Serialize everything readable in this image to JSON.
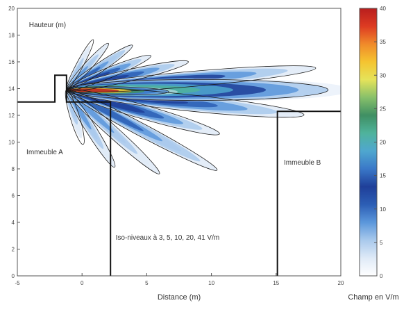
{
  "chart_data": {
    "type": "heatmap",
    "xlabel": "Distance (m)",
    "ylabel": "",
    "xlim": [
      -5,
      20
    ],
    "ylim": [
      0,
      20
    ],
    "x_ticks": [
      -5,
      0,
      5,
      10,
      15,
      20
    ],
    "y_ticks": [
      0,
      2,
      4,
      6,
      8,
      10,
      12,
      14,
      16,
      18,
      20
    ],
    "colorbar": {
      "label": "Champ en V/m",
      "range": [
        0,
        40
      ],
      "ticks": [
        0,
        5,
        10,
        15,
        20,
        25,
        30,
        35,
        40
      ]
    },
    "annotations": [
      {
        "text": "Hauteur (m)",
        "x": -4.1,
        "y": 18.6
      },
      {
        "text": "Immeuble A",
        "x": -4.3,
        "y": 9.1
      },
      {
        "text": "Immeuble B",
        "x": 15.6,
        "y": 8.3
      },
      {
        "text": "Iso-niveaux à 3, 5, 10, 20, 41 V/m",
        "x": 2.6,
        "y": 2.7
      }
    ],
    "iso_levels": [
      3,
      5,
      10,
      20,
      41
    ],
    "antenna": {
      "x": -1.2,
      "y": 13.9
    },
    "building_a_outline": [
      [
        -5,
        13
      ],
      [
        -2.1,
        13
      ],
      [
        -2.1,
        15
      ],
      [
        -1.2,
        15
      ],
      [
        -1.2,
        13
      ],
      [
        2.2,
        13
      ],
      [
        2.2,
        0
      ]
    ],
    "building_b_outline": [
      [
        15.1,
        0
      ],
      [
        15.1,
        12.3
      ],
      [
        20,
        12.3
      ]
    ],
    "lobes": [
      {
        "angle_deg": 0,
        "length": 23,
        "width": 1.8,
        "peak": 22
      },
      {
        "angle_deg": -1,
        "length": 9,
        "width": 0.7,
        "peak": 40
      },
      {
        "angle_deg": 5,
        "length": 22,
        "width": 1.3,
        "peak": 15
      },
      {
        "angle_deg": -6,
        "length": 21,
        "width": 1.4,
        "peak": 14
      },
      {
        "angle_deg": 13,
        "length": 11,
        "width": 1.0,
        "peak": 14
      },
      {
        "angle_deg": -16,
        "length": 14,
        "width": 1.2,
        "peak": 12
      },
      {
        "angle_deg": 22,
        "length": 8,
        "width": 0.9,
        "peak": 12
      },
      {
        "angle_deg": -28,
        "length": 15,
        "width": 1.1,
        "peak": 10
      },
      {
        "angle_deg": 34,
        "length": 7,
        "width": 0.8,
        "peak": 10
      },
      {
        "angle_deg": -42,
        "length": 11,
        "width": 1.0,
        "peak": 8
      },
      {
        "angle_deg": 48,
        "length": 5.5,
        "width": 0.7,
        "peak": 8
      },
      {
        "angle_deg": -58,
        "length": 8,
        "width": 0.9,
        "peak": 7
      },
      {
        "angle_deg": 62,
        "length": 5,
        "width": 0.6,
        "peak": 6
      },
      {
        "angle_deg": -73,
        "length": 5,
        "width": 0.8,
        "peak": 6
      }
    ],
    "grid": false,
    "colormap": [
      "#ffffff",
      "#dfeaf7",
      "#a9c9ec",
      "#5b97db",
      "#2c5eb5",
      "#1f3f99",
      "#3a78c8",
      "#4fa7cf",
      "#4fb39c",
      "#3f8f63",
      "#87c06a",
      "#e5e35a",
      "#f5c430",
      "#f08a2a",
      "#dd3b22",
      "#b81e1e"
    ]
  }
}
